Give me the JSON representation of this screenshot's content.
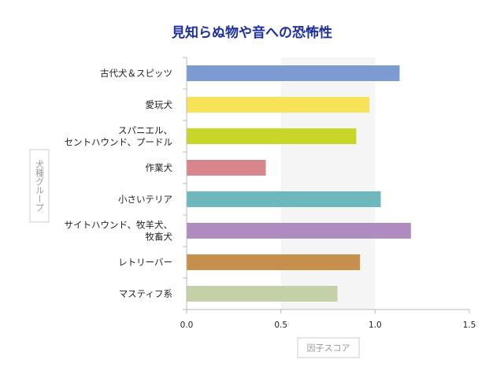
{
  "chart_data": {
    "type": "bar",
    "orientation": "horizontal",
    "title": "見知らぬ物や音への恐怖性",
    "xlabel": "因子スコア",
    "ylabel": "犬種グループ",
    "xlim": [
      0,
      1.5
    ],
    "xticks": [
      "0.0",
      "0.5",
      "1.0",
      "1.5"
    ],
    "highlight_band": [
      0.5,
      1.0
    ],
    "categories": [
      [
        "古代犬＆スピッツ"
      ],
      [
        "愛玩犬"
      ],
      [
        "スパニエル、",
        "セントハウンド、プードル"
      ],
      [
        "作業犬"
      ],
      [
        "小さいテリア"
      ],
      [
        "サイトハウンド、牧羊犬、",
        "牧畜犬"
      ],
      [
        "レトリーバー"
      ],
      [
        "マスティフ系"
      ]
    ],
    "values": [
      1.13,
      0.97,
      0.9,
      0.42,
      1.03,
      1.19,
      0.92,
      0.8
    ],
    "colors": [
      "#7b9bd2",
      "#f8e25a",
      "#c8d62a",
      "#d8868c",
      "#6db8bd",
      "#ae8cc0",
      "#c78f4c",
      "#c4d1a6"
    ]
  }
}
